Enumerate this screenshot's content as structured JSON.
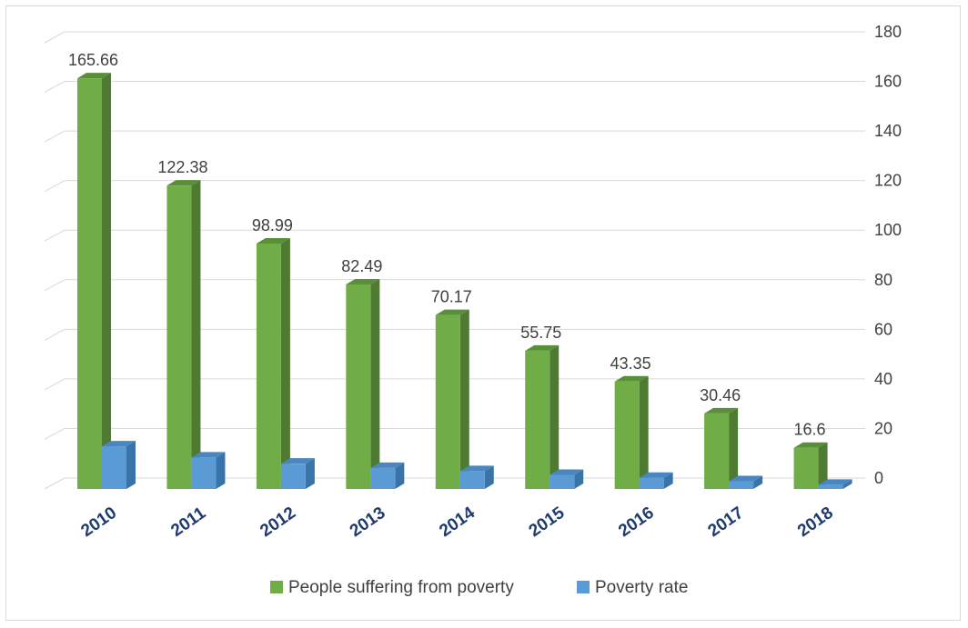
{
  "chart_data": {
    "type": "bar",
    "categories": [
      "2010",
      "2011",
      "2012",
      "2013",
      "2014",
      "2015",
      "2016",
      "2017",
      "2018"
    ],
    "series": [
      {
        "name": "People suffering from poverty",
        "values": [
          165.66,
          122.38,
          98.99,
          82.49,
          70.17,
          55.75,
          43.35,
          30.46,
          16.6
        ],
        "data_labels": [
          "165.66",
          "122.38",
          "98.99",
          "82.49",
          "70.17",
          "55.75",
          "43.35",
          "30.46",
          "16.6"
        ],
        "color": "#70ad47",
        "side_color": "#4e7a32",
        "top_color": "#5a8f3a"
      },
      {
        "name": "Poverty rate",
        "values": [
          17.2,
          12.7,
          10.2,
          8.5,
          7.2,
          5.7,
          4.5,
          3.1,
          1.7
        ],
        "color": "#5b9bd5",
        "side_color": "#3a73a8",
        "top_color": "#4a86bf"
      }
    ],
    "y_ticks": [
      "0",
      "20",
      "40",
      "60",
      "80",
      "100",
      "120",
      "140",
      "160",
      "180"
    ],
    "ylim": [
      0,
      180
    ],
    "y_axis_side": "right",
    "grid": true,
    "legend_position": "bottom",
    "projection": "3d-column"
  }
}
